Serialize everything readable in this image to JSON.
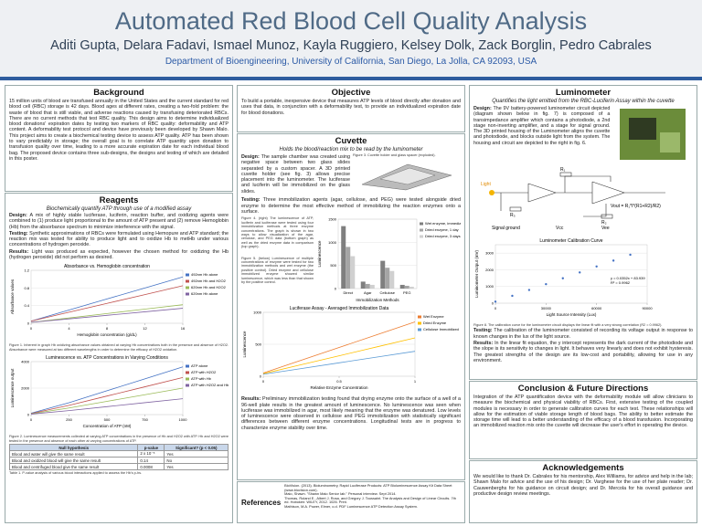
{
  "header": {
    "title": "Automated Red Blood Cell Quality Analysis",
    "authors": "Aditi Gupta, Delara Fadavi, Ismael Munoz, Kayla Ruggiero, Kelsey Dolk, Zack Borglin, Pedro Cabrales",
    "department": "Department of Bioengineering, University of California, San Diego, La Jolla, CA 92093, USA"
  },
  "background": {
    "heading": "Background",
    "body": "15 million units of blood are transfused annually in the United States and the current standard for red blood cell (RBC) storage is 42 days. Blood ages at different rates, creating a two-fold problem: the waste of blood that is still viable, and adverse reactions caused by transfusing deteriorated RBCs. There are no current methods that test RBC quality. This design aims to determine individualized blood donations' expiration dates by testing two markers of RBC quality: deformability and ATP content. A deformability test protocol and device have previously been developed by Shawn Malo. This project aims to create a biochemical testing device to assess ATP quality. ATP has been shown to vary predictably in storage; the overall goal is to correlate ATP quantity upon donation to transfusion quality over time, leading to a more accurate expiration date for each individual blood bag. The proposed device contains three sub-designs, the designs and testing of which are detailed in this poster."
  },
  "reagents": {
    "heading": "Reagents",
    "subtitle": "Biochemically quantify ATP through use of a modified assay",
    "paragraphs": [
      {
        "label": "Design:",
        "text": "A mix of highly stable luciferase, luciferin, reaction buffer, and oxidizing agents were combined to (1) produce light proportional to the amount of ATP present and (2) remove Hemoglobin (Hb) from the absorbance spectrum to minimize interference with the signal."
      },
      {
        "label": "Testing:",
        "text": "Synthetic approximations of RBCs were formulated using Hemopure and ATP standard; the reaction mix was tested for ability to produce light and to oxidize Hb to metHb under various concentrations of hydrogen peroxide."
      },
      {
        "label": "Results:",
        "text": "Light was produced as expected, however the chosen method for oxidizing the Hb (hydrogen peroxide) did not perform as desired."
      }
    ],
    "caption1": "Figure 1. Inherent in graph Hb oxidizing absorbance values obtained at varying Hb concentrations both in the presence and absence of H2O2. Absorbance were measured at two different wavelengths in order to determine the efficacy of H2O2 oxidation.",
    "caption2": "Figure 2. Luminescence measurements collected at varying ATP concentrations in the presence of Hb and H2O2 with ATP. Hb and H2O2 were tested in the presence and absence of each other at varying concentrations of ATP."
  },
  "charts": {
    "absorbance": {
      "type": "line",
      "title": "Absorbance vs. Hemoglobin concentration",
      "x_label": "Hemoglobin concentration (g/dL)",
      "y_label": "Absorbance values",
      "x": [
        0,
        4,
        8,
        12,
        16
      ],
      "xlim": [
        0,
        16
      ],
      "ylim": [
        0,
        1.2
      ],
      "xticks": [
        0,
        4,
        8,
        12,
        16
      ],
      "yticks": [
        0,
        0.4,
        0.8,
        1.2
      ],
      "series": [
        {
          "name": "492nm Hb alone",
          "color": "#4472c4",
          "values": [
            0.05,
            0.3,
            0.55,
            0.8,
            1.05
          ]
        },
        {
          "name": "492nm Hb and H2O2",
          "color": "#c0504d",
          "values": [
            0.05,
            0.25,
            0.45,
            0.65,
            0.85
          ]
        },
        {
          "name": "620nm Hb and H2O2",
          "color": "#9bbb59",
          "values": [
            0.02,
            0.12,
            0.22,
            0.32,
            0.42
          ]
        },
        {
          "name": "620nm Hb alone",
          "color": "#8064a2",
          "values": [
            0.02,
            0.1,
            0.18,
            0.26,
            0.34
          ]
        }
      ]
    },
    "luminescence": {
      "type": "line",
      "title": "Luminescence vs. ATP Concentrations in Varying Conditions",
      "x_label": "Concentration of ATP (nM)",
      "y_label": "Luminescence output",
      "x": [
        0,
        250,
        500,
        750,
        1000
      ],
      "xlim": [
        0,
        1000
      ],
      "ylim": [
        0,
        4000
      ],
      "xticks": [
        0,
        250,
        500,
        750,
        1000
      ],
      "yticks": [
        0,
        2000,
        4000
      ],
      "series": [
        {
          "name": "ATP alone",
          "color": "#4472c4",
          "values": [
            100,
            900,
            1800,
            2700,
            3600
          ]
        },
        {
          "name": "ATP with H2O2",
          "color": "#c0504d",
          "values": [
            80,
            700,
            1400,
            2100,
            2800
          ]
        },
        {
          "name": "ATP with Hb",
          "color": "#9bbb59",
          "values": [
            60,
            500,
            1000,
            1500,
            2000
          ]
        },
        {
          "name": "ATP with H2O2 and Hb",
          "color": "#8064a2",
          "values": [
            40,
            300,
            600,
            900,
            1200
          ]
        }
      ]
    },
    "immobilization": {
      "type": "bar",
      "x_label": "Immobilization Methods",
      "y_label": "Luminescence",
      "categories": [
        "Direct",
        "Agar",
        "Cellulose",
        "PEG"
      ],
      "ylim": [
        0,
        1500
      ],
      "yticks": [
        0,
        500,
        1000,
        1500
      ],
      "series": [
        {
          "name": "Wet enzyme, immediate",
          "color": "#7f7f7f",
          "values": [
            1350,
            150,
            600,
            80
          ]
        },
        {
          "name": "Dried enzyme, 1 day",
          "color": "#a5a5a5",
          "values": [
            900,
            100,
            450,
            60
          ]
        },
        {
          "name": "Dried enzyme, 3 days",
          "color": "#d0d0d0",
          "values": [
            700,
            80,
            380,
            40
          ]
        }
      ]
    },
    "averaged": {
      "type": "line",
      "title": "Luciferase Assay - Averaged Immobilization Data",
      "x_label": "Relative Enzyme Concentration",
      "y_label": "Luminescence",
      "x": [
        0,
        0.25,
        0.5,
        0.75,
        1
      ],
      "xlim": [
        0,
        1
      ],
      "ylim": [
        0,
        1000
      ],
      "xticks": [
        0,
        0.5,
        1
      ],
      "yticks": [
        0,
        500,
        1000
      ],
      "series": [
        {
          "name": "Wet Enzyme",
          "color": "#ed7d31",
          "values": [
            50,
            250,
            450,
            650,
            850
          ]
        },
        {
          "name": "Dried Enzyme",
          "color": "#ffc000",
          "values": [
            40,
            180,
            320,
            460,
            600
          ]
        },
        {
          "name": "Cellulose Immobilized",
          "color": "#5b9bd5",
          "values": [
            30,
            120,
            210,
            300,
            390
          ]
        }
      ]
    },
    "calibration": {
      "type": "scatter",
      "title": "Luminometer Calibration Curve",
      "x_label": "Light Source Intensity (Lux)",
      "y_label": "Luminometer Output (mV)",
      "equation": "y = 0.0352x + 83.939",
      "r_squared": "R² = 0.9962",
      "x": [
        0,
        10000,
        20000,
        30000,
        40000,
        50000,
        60000,
        70000,
        80000
      ],
      "xlim": [
        0,
        90000
      ],
      "ylim": [
        0,
        3500
      ],
      "xticks": [
        0,
        30000,
        60000,
        90000
      ],
      "yticks": [
        0,
        1000,
        2000,
        3000
      ],
      "series": [
        {
          "name": "Luminometer output",
          "color": "#4472c4",
          "values": [
            90,
            440,
            790,
            1140,
            1490,
            1840,
            2200,
            2550,
            2900
          ]
        }
      ]
    }
  },
  "table": {
    "header": [
      "Null hypothesis",
      "p-value",
      "Significant? (p < 0.05)"
    ],
    "rows": [
      [
        "Blood and water will give the same result",
        "2 x 10⁻⁵",
        "Yes"
      ],
      [
        "Blood and oxidized blood will give the same result",
        "0.14",
        "No"
      ],
      [
        "Blood and centrifuged blood give the same result",
        "0.0008",
        "Yes"
      ]
    ],
    "caption": "Table 1. P-value analysis of various blood interactions applied to assess the Hb's p-hs."
  },
  "objective": {
    "heading": "Objective",
    "body": "To build a portable, inexpensive device that measures ATP levels of blood directly after donation and uses that data, in conjunction with a deformability test, to provide an individualized expiration date for blood donations."
  },
  "cuvette": {
    "heading": "Cuvette",
    "subtitle": "Holds the blood/reaction mix to be read by the luminometer",
    "design_label": "Design:",
    "design": "The sample chamber was created using negative space between two glass slides separated by a custom spacer. A 3D printed cuvette holder (see fig. 3) allows precise placement into the luminometer. The luciferase and luciferin will be immobilized on the glass slides.",
    "figure3": "Figure 3. Cuvette holder and glass spacer (exploded).",
    "testing_label": "Testing:",
    "testing": "Three immobilization agents (agar, cellulose, and PEG) were tested alongside dried enzyme to determine the most effective method of immobilizing the reaction enzymes onto a surface.",
    "figure4": "Figure 4. (right) The luminescence of ATP, luciferin and luciferase were tested using four immobilization methods at three enzyme concentrations. The graph is shown in two ways to allow visualization of the agar, cellulose, and PEG data (bottom graph) as well as the dried enzyme data in comparison (top graph).",
    "figure5": "Figure 5. (below) Luminescence of multiple concentrations of enzyme were tested for two immobilization methods and wet enzyme (the positive control). Dried enzyme and cellulose immobilized enzyme showed similar luminescence, which was less than that shown by the positive control.",
    "results_label": "Results:",
    "results": "Preliminary immobilization testing found that drying enzyme onto the surface of a well of a 96-well plate results in the greatest amount of luminescence. No luminescence was seen when luciferase was immobilized in agar, most likely meaning that the enzyme was denatured. Low levels of luminescence were observed in cellulose and PEG immobilization with statistically significant differences between different enzyme concentrations. Longitudinal tests are in progress to characterize enzyme stability over time."
  },
  "references": {
    "heading": "References",
    "items": [
      "BioVision. (2013). Bioluminometry, Rapid Luciferase Products: ATP Bioluminescence Assay Kit Data Sheet (www.biovision.com).",
      "Malo, Shawn. \"Shawn Malo Senior Iab.\" Personal interview. Sept 2014.",
      "Thomas, Roland E., Albert J. Rosa, and Gregory J. Toussaint. The Analysis and Design of Linear Circuits. 7th ed. Hoboken: WILEY, 2012. 1026. Print.",
      "Mathison, M.A. Power, Elmer, o.d. PDF Luminescence ATP Detection Assay System."
    ]
  },
  "luminometer": {
    "heading": "Luminometer",
    "subtitle": "Quantifies the light emitted from the RBC-Luciferin Assay within the cuvette",
    "design_label": "Design:",
    "design": "The 9V battery-powered luminometer circuit depicted (diagram shown below in fig. 7) is composed of a transimpedance amplifier which contains a photodiode, a 2nd stage non-inverting amplifier, and a stage for signal ground. The 3D printed housing of the Luminometer aligns the cuvette and photodiode, and blocks outside light from the system. The housing and circuit are depicted to the right in fig. 6.",
    "circuit": {
      "light": "Light",
      "r1": "R₁",
      "r2": "R₂",
      "r3": "R₃",
      "vout": "Vout = R₁*I*(R1+R2)/R2)",
      "legend": [
        "Signal ground",
        "Vcc",
        "Vee"
      ]
    },
    "figure8": "Figure 8. The calibration curve for the luminometer circuit displays the linear fit with a very strong correlation (R2 = 0.9962).",
    "testing_label": "Testing:",
    "testing": "The calibration of the luminometer consisted of recording its voltage output in response to known changes in the lux of the light source.",
    "results_label": "Results:",
    "results": "In the linear fit equation, the y intercept represents the dark current of the photodiode and the slope is its sensitivity to changes in light. It behaves very linearly and does not exhibit hysteresis. The greatest strengths of the design are its low-cost and portability, allowing for use in any environment."
  },
  "conclusion": {
    "heading": "Conclusion & Future Directions",
    "body": "Integration of the ATP quantification device with the deformability module will allow clinicians to measure the biochemical and physical viability of RBCs. First, extensive testing of the coupled modules is necessary in order to generate calibration curves for each test. These relationships will allow for the estimation of viable storage length of blood bags. The ability to better estimate the storage time will lead to a better understanding of the efficacy of a blood transfusion. Incorporating an immobilized reaction mix onto the cuvette will decrease the user's effort in operating the device."
  },
  "acknowledgements": {
    "heading": "Acknowledgements",
    "body": "We would like to thank Dr. Cabrales for his mentorship, Alex Williams, for advice and help in the lab; Shawn Malo for advice and the use of his design; Dr. Varghese for the use of her plate reader; Dr. Cauwenberghs for his guidance on circuit design; and Dr. Mercola for his overall guidance and productive design review meetings."
  }
}
